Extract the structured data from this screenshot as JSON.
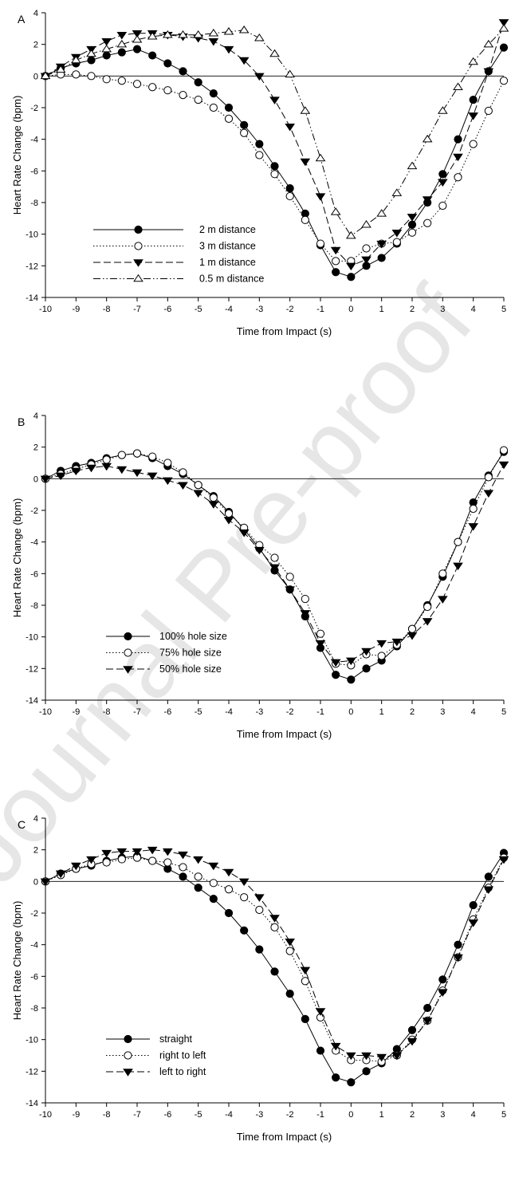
{
  "watermark": "Journal Pre-proof",
  "chart_data": [
    {
      "type": "line",
      "panel": "A",
      "xlabel": "Time from Impact (s)",
      "ylabel": "Heart Rate Change (bpm)",
      "xlim": [
        -10,
        5
      ],
      "ylim": [
        -14,
        4
      ],
      "xticks": [
        -10,
        -9,
        -8,
        -7,
        -6,
        -5,
        -4,
        -3,
        -2,
        -1,
        0,
        1,
        2,
        3,
        4,
        5
      ],
      "yticks": [
        4,
        2,
        0,
        -2,
        -4,
        -6,
        -8,
        -10,
        -12,
        -14
      ],
      "x": [
        -10,
        -9.5,
        -9,
        -8.5,
        -8,
        -7.5,
        -7,
        -6.5,
        -6,
        -5.5,
        -5,
        -4.5,
        -4,
        -3.5,
        -3,
        -2.5,
        -2,
        -1.5,
        -1,
        -0.5,
        0,
        0.5,
        1,
        1.5,
        2,
        2.5,
        3,
        3.5,
        4,
        4.5,
        5
      ],
      "legend_position": "lower-left",
      "series": [
        {
          "name": "2 m distance",
          "marker": "filled-circle",
          "dash": "solid",
          "values": [
            0,
            0.5,
            0.8,
            1.0,
            1.3,
            1.5,
            1.7,
            1.3,
            0.8,
            0.3,
            -0.4,
            -1.1,
            -2.0,
            -3.1,
            -4.3,
            -5.7,
            -7.1,
            -8.7,
            -10.7,
            -12.4,
            -12.7,
            -12.0,
            -11.5,
            -10.6,
            -9.4,
            -8.0,
            -6.2,
            -4.0,
            -1.5,
            0.3,
            1.8
          ]
        },
        {
          "name": "3 m distance",
          "marker": "open-circle",
          "dash": "dotted",
          "values": [
            0,
            0.1,
            0.1,
            0.0,
            -0.2,
            -0.3,
            -0.5,
            -0.7,
            -0.9,
            -1.2,
            -1.5,
            -2.0,
            -2.7,
            -3.6,
            -5.0,
            -6.2,
            -7.6,
            -9.1,
            -10.6,
            -11.7,
            -11.7,
            -10.9,
            -10.6,
            -10.5,
            -9.9,
            -9.3,
            -8.2,
            -6.4,
            -4.3,
            -2.2,
            -0.3
          ]
        },
        {
          "name": "1 m distance",
          "marker": "filled-triangle-down",
          "dash": "dashed",
          "values": [
            0,
            0.6,
            1.2,
            1.7,
            2.2,
            2.6,
            2.7,
            2.7,
            2.6,
            2.5,
            2.4,
            2.2,
            1.7,
            1.0,
            0.0,
            -1.5,
            -3.2,
            -5.4,
            -7.6,
            -11.0,
            -12.0,
            -11.6,
            -10.6,
            -9.9,
            -8.9,
            -7.8,
            -6.7,
            -5.1,
            -2.5,
            0.3,
            3.4
          ]
        },
        {
          "name": "0.5 m distance",
          "marker": "open-triangle-up",
          "dash": "dash-dot-dot",
          "values": [
            0,
            0.4,
            1.0,
            1.4,
            1.7,
            2.0,
            2.3,
            2.5,
            2.6,
            2.6,
            2.6,
            2.7,
            2.8,
            2.9,
            2.4,
            1.4,
            0.1,
            -2.2,
            -5.2,
            -8.6,
            -10.1,
            -9.4,
            -8.7,
            -7.4,
            -5.7,
            -4.0,
            -2.2,
            -0.7,
            0.9,
            2.0,
            3.0
          ]
        }
      ]
    },
    {
      "type": "line",
      "panel": "B",
      "xlabel": "Time from Impact (s)",
      "ylabel": "Heart Rate Change (bpm)",
      "xlim": [
        -10,
        5
      ],
      "ylim": [
        -14,
        4
      ],
      "xticks": [
        -10,
        -9,
        -8,
        -7,
        -6,
        -5,
        -4,
        -3,
        -2,
        -1,
        0,
        1,
        2,
        3,
        4,
        5
      ],
      "yticks": [
        4,
        2,
        0,
        -2,
        -4,
        -6,
        -8,
        -10,
        -12,
        -14
      ],
      "x": [
        -10,
        -9.5,
        -9,
        -8.5,
        -8,
        -7.5,
        -7,
        -6.5,
        -6,
        -5.5,
        -5,
        -4.5,
        -4,
        -3.5,
        -3,
        -2.5,
        -2,
        -1.5,
        -1,
        -0.5,
        0,
        0.5,
        1,
        1.5,
        2,
        2.5,
        3,
        3.5,
        4,
        4.5,
        5
      ],
      "legend_position": "lower-left",
      "series": [
        {
          "name": "100% hole size",
          "marker": "filled-circle",
          "dash": "solid",
          "values": [
            0,
            0.5,
            0.8,
            1.0,
            1.3,
            1.5,
            1.6,
            1.3,
            0.8,
            0.3,
            -0.4,
            -1.1,
            -2.1,
            -3.2,
            -4.4,
            -5.8,
            -7.0,
            -8.7,
            -10.7,
            -12.4,
            -12.7,
            -12.0,
            -11.5,
            -10.6,
            -9.5,
            -8.0,
            -6.2,
            -4.0,
            -1.5,
            0.2,
            1.7
          ]
        },
        {
          "name": "75% hole size",
          "marker": "open-circle",
          "dash": "dotted",
          "values": [
            0,
            0.3,
            0.6,
            0.9,
            1.2,
            1.5,
            1.6,
            1.4,
            1.0,
            0.4,
            -0.4,
            -1.2,
            -2.2,
            -3.1,
            -4.2,
            -5.0,
            -6.2,
            -7.6,
            -9.8,
            -11.7,
            -11.8,
            -11.1,
            -11.2,
            -10.5,
            -9.5,
            -8.1,
            -6.0,
            -4.0,
            -1.9,
            0.1,
            1.8
          ]
        },
        {
          "name": "50% hole size",
          "marker": "filled-triangle-down",
          "dash": "dashed",
          "values": [
            0,
            0.2,
            0.5,
            0.7,
            0.8,
            0.6,
            0.4,
            0.2,
            -0.1,
            -0.4,
            -0.9,
            -1.6,
            -2.6,
            -3.4,
            -4.5,
            -5.6,
            -7.0,
            -8.5,
            -10.4,
            -11.6,
            -11.5,
            -10.9,
            -10.4,
            -10.3,
            -9.9,
            -9.0,
            -7.6,
            -5.5,
            -3.0,
            -0.9,
            0.9
          ]
        }
      ]
    },
    {
      "type": "line",
      "panel": "C",
      "xlabel": "Time from Impact (s)",
      "ylabel": "Heart Rate Change (bpm)",
      "xlim": [
        -10,
        5
      ],
      "ylim": [
        -14,
        4
      ],
      "xticks": [
        -10,
        -9,
        -8,
        -7,
        -6,
        -5,
        -4,
        -3,
        -2,
        -1,
        0,
        1,
        2,
        3,
        4,
        5
      ],
      "yticks": [
        4,
        2,
        0,
        -2,
        -4,
        -6,
        -8,
        -10,
        -12,
        -14
      ],
      "x": [
        -10,
        -9.5,
        -9,
        -8.5,
        -8,
        -7.5,
        -7,
        -6.5,
        -6,
        -5.5,
        -5,
        -4.5,
        -4,
        -3.5,
        -3,
        -2.5,
        -2,
        -1.5,
        -1,
        -0.5,
        0,
        0.5,
        1,
        1.5,
        2,
        2.5,
        3,
        3.5,
        4,
        4.5,
        5
      ],
      "legend_position": "lower-left",
      "series": [
        {
          "name": "straight",
          "marker": "filled-circle",
          "dash": "solid",
          "values": [
            0,
            0.5,
            0.8,
            1.0,
            1.3,
            1.5,
            1.6,
            1.3,
            0.8,
            0.3,
            -0.4,
            -1.1,
            -2.0,
            -3.1,
            -4.3,
            -5.7,
            -7.1,
            -8.7,
            -10.7,
            -12.4,
            -12.7,
            -12.0,
            -11.5,
            -10.6,
            -9.4,
            -8.0,
            -6.2,
            -4.0,
            -1.5,
            0.3,
            1.8
          ]
        },
        {
          "name": "right to left",
          "marker": "open-circle",
          "dash": "dotted",
          "values": [
            0,
            0.4,
            0.8,
            1.1,
            1.2,
            1.4,
            1.5,
            1.3,
            1.2,
            0.9,
            0.3,
            -0.1,
            -0.5,
            -1.0,
            -1.8,
            -2.9,
            -4.4,
            -6.3,
            -8.6,
            -10.7,
            -11.3,
            -11.3,
            -11.4,
            -11.0,
            -10.0,
            -8.8,
            -6.9,
            -4.8,
            -2.4,
            -0.4,
            1.5
          ]
        },
        {
          "name": "left to right",
          "marker": "filled-triangle-down",
          "dash": "dashed",
          "values": [
            0,
            0.5,
            1.0,
            1.4,
            1.8,
            1.9,
            1.9,
            2.0,
            1.9,
            1.7,
            1.4,
            1.0,
            0.6,
            0.0,
            -1.0,
            -2.3,
            -3.8,
            -5.6,
            -8.2,
            -10.4,
            -11.0,
            -11.0,
            -11.1,
            -11.0,
            -10.1,
            -8.8,
            -7.0,
            -4.8,
            -2.6,
            -0.5,
            1.4
          ]
        }
      ]
    }
  ]
}
